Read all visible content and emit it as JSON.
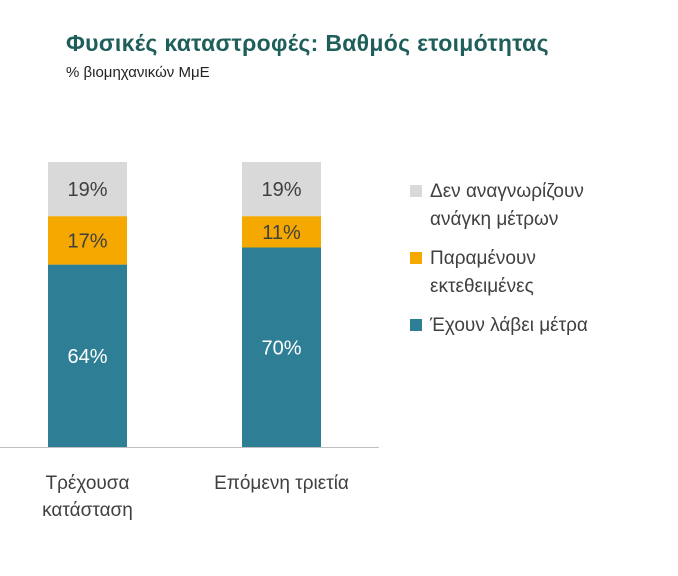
{
  "header": {
    "title": "Φυσικές καταστροφές: Βαθμός ετοιμότητας",
    "subtitle": "% βιομηχανικών ΜμΕ"
  },
  "chart_data": {
    "type": "bar",
    "stacked": true,
    "title": "Φυσικές καταστροφές: Βαθμός ετοιμότητας",
    "subtitle": "% βιομηχανικών ΜμΕ",
    "categories": [
      [
        "Τρέχουσα",
        "κατάσταση"
      ],
      [
        "Επόμενη τριετία"
      ]
    ],
    "series": [
      {
        "name": "Έχουν λάβει μέτρα",
        "values": [
          64,
          70
        ],
        "labels": [
          "64%",
          "70%"
        ],
        "color": "#2e7f96"
      },
      {
        "name": "Παραμένουν εκτεθειμένες",
        "values": [
          17,
          11
        ],
        "labels": [
          "17%",
          "11%"
        ],
        "color": "#f5a800"
      },
      {
        "name": "Δεν αναγνωρίζουν ανάγκη μέτρων",
        "values": [
          19,
          19
        ],
        "labels": [
          "19%",
          "19%"
        ],
        "color": "#d9d9d9"
      }
    ],
    "ylim": [
      0,
      100
    ],
    "grid": false,
    "legend_position": "right"
  },
  "legend": {
    "items": [
      {
        "lines": [
          "Δεν αναγνωρίζουν",
          "ανάγκη μέτρων"
        ],
        "color": "#d9d9d9"
      },
      {
        "lines": [
          "Παραμένουν",
          "εκτεθειμένες"
        ],
        "color": "#f5a800"
      },
      {
        "lines": [
          "Έχουν λάβει μέτρα"
        ],
        "color": "#2e7f96"
      }
    ]
  }
}
